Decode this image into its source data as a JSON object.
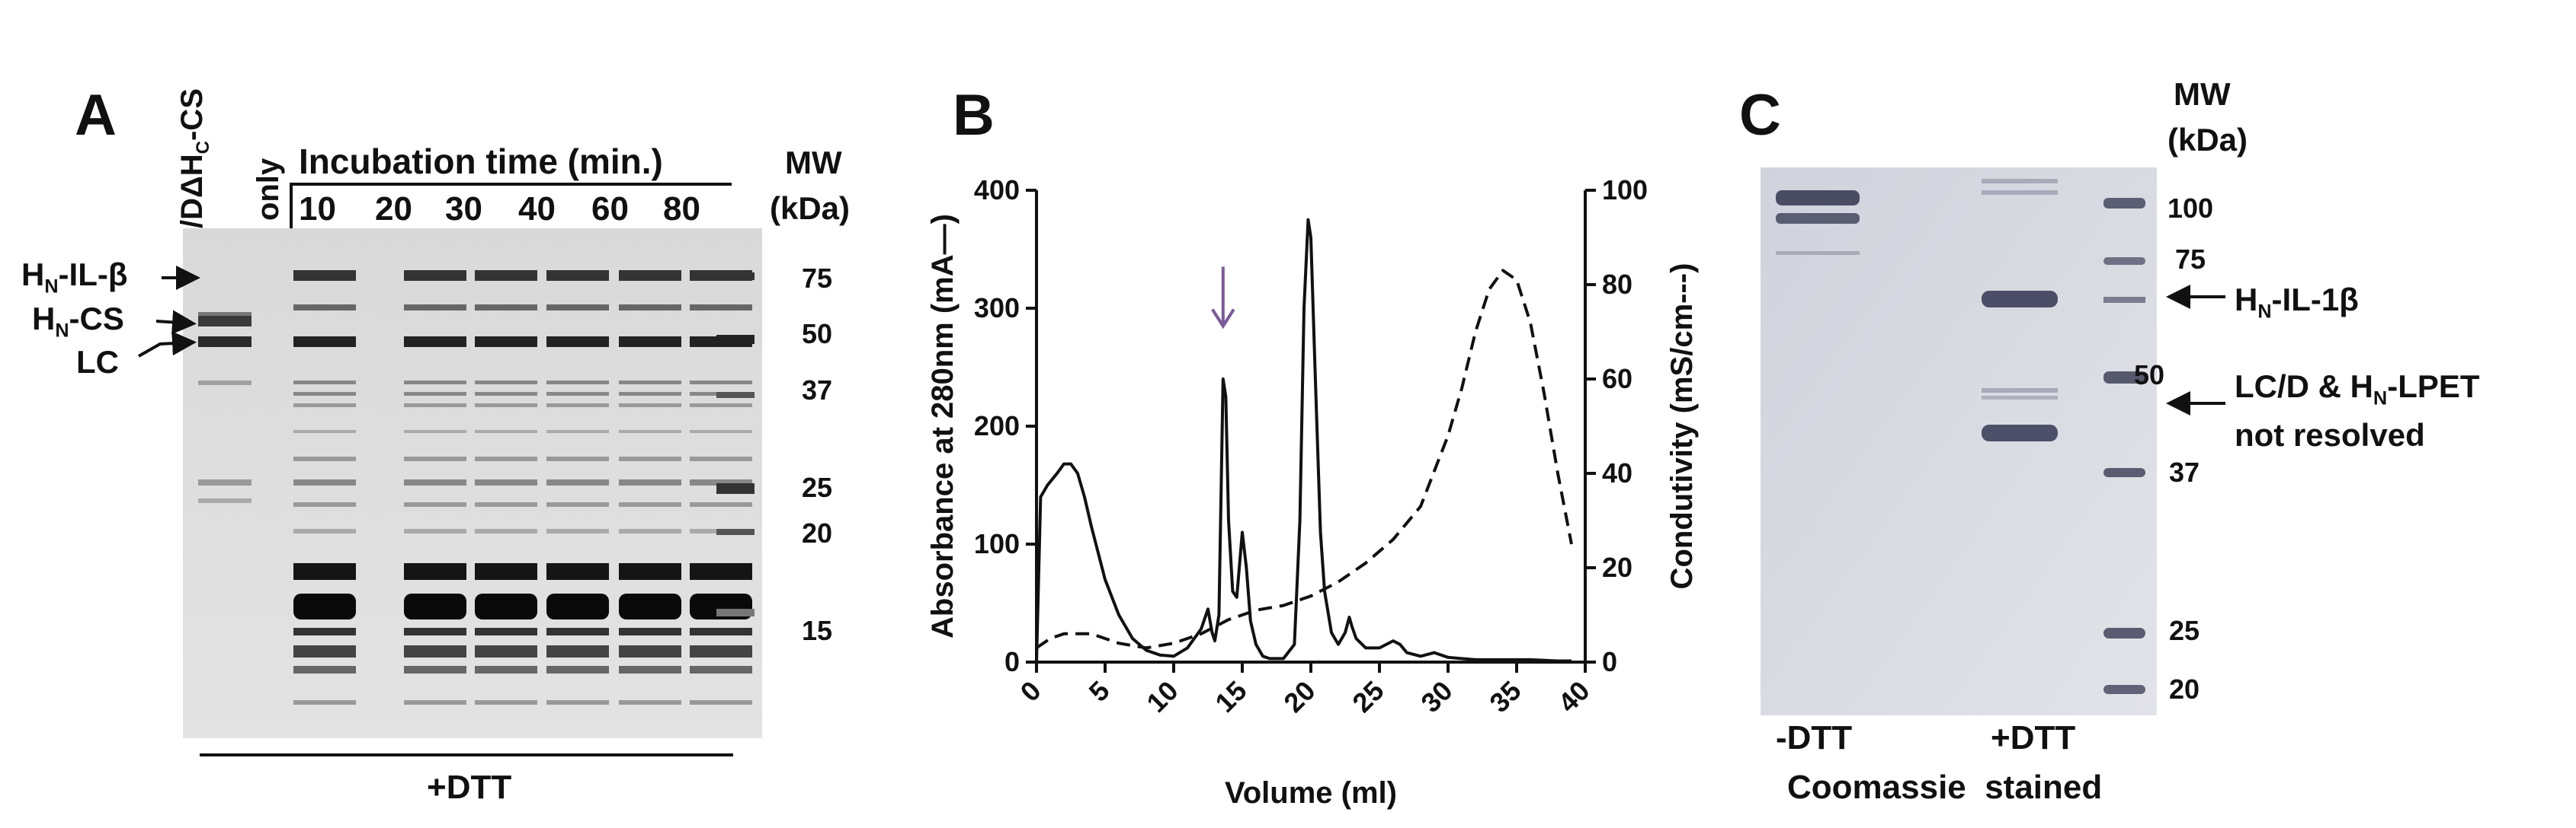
{
  "panel_a": {
    "letter": "A",
    "top_lane_label": "/DΔH",
    "top_lane_sub": "C",
    "top_lane_suffix": "-CS",
    "only_label": "only",
    "incubation_header": "Incubation time (min.)",
    "time_points": [
      "10",
      "20",
      "30",
      "40",
      "60",
      "80"
    ],
    "mw_header_1": "MW",
    "mw_header_2": "(kDa)",
    "mw_markers": [
      "75",
      "50",
      "37",
      "25",
      "20",
      "15"
    ],
    "band_labels": [
      {
        "main": "H",
        "sub": "N",
        "rest": "-IL-β"
      },
      {
        "main": "H",
        "sub": "N",
        "rest": "-CS"
      },
      {
        "main": "LC",
        "sub": "",
        "rest": ""
      }
    ],
    "bottom_label": "+DTT"
  },
  "panel_b": {
    "letter": "B",
    "arrow_color": "#7a5a9a",
    "chart_data": {
      "type": "line",
      "xlabel": "Volume (ml)",
      "ylabel_left": "Absorbance at 280nm (mA—)",
      "ylabel_right": "Condutivity (mS/cm---)",
      "xlim": [
        0,
        40
      ],
      "ylim_left": [
        0,
        400
      ],
      "ylim_right": [
        0,
        100
      ],
      "x_ticks": [
        "0",
        "5",
        "10",
        "15",
        "20",
        "25",
        "30",
        "35",
        "40"
      ],
      "y_ticks_left": [
        "0",
        "100",
        "200",
        "300",
        "400"
      ],
      "y_ticks_right": [
        "0",
        "20",
        "40",
        "60",
        "80",
        "100"
      ],
      "series": [
        {
          "name": "Absorbance (mA)",
          "style": "solid",
          "axis": "left",
          "x": [
            0,
            0.3,
            0.8,
            1.5,
            2.0,
            2.5,
            3.0,
            3.5,
            4.0,
            5.0,
            6.0,
            7.0,
            8.0,
            9.0,
            10.0,
            11.0,
            12.0,
            12.5,
            12.8,
            13.0,
            13.3,
            13.6,
            13.8,
            14.0,
            14.3,
            14.6,
            15.0,
            15.3,
            15.6,
            16.0,
            16.5,
            17.0,
            18.0,
            18.8,
            19.2,
            19.5,
            19.8,
            20.0,
            20.3,
            20.7,
            21.0,
            21.5,
            22.0,
            22.5,
            22.8,
            23.0,
            23.3,
            24.0,
            25.0,
            26.0,
            26.5,
            27.0,
            28.0,
            29.0,
            30.0,
            31.0,
            32.0,
            34.0,
            36.0,
            38.0,
            39.0
          ],
          "y": [
            0,
            140,
            150,
            160,
            168,
            168,
            160,
            140,
            115,
            70,
            40,
            20,
            10,
            6,
            5,
            12,
            28,
            45,
            25,
            18,
            40,
            240,
            225,
            120,
            60,
            55,
            110,
            80,
            35,
            15,
            5,
            3,
            3,
            15,
            120,
            300,
            375,
            360,
            250,
            110,
            60,
            25,
            15,
            25,
            38,
            30,
            20,
            12,
            12,
            18,
            15,
            8,
            5,
            8,
            4,
            3,
            2,
            2,
            2,
            1,
            1
          ]
        },
        {
          "name": "Conductivity (mS/cm)",
          "style": "dashed",
          "axis": "right",
          "x": [
            0,
            1,
            2,
            3,
            4,
            6,
            8,
            10,
            12,
            14,
            16,
            18,
            20,
            22,
            24,
            26,
            28,
            30,
            31,
            32,
            33,
            34,
            35,
            36,
            37,
            38,
            39
          ],
          "y": [
            3,
            5,
            6,
            6,
            6,
            4,
            3,
            4,
            6,
            9,
            11,
            12,
            14,
            17,
            21,
            26,
            33,
            48,
            58,
            70,
            79,
            83,
            81,
            72,
            57,
            40,
            25
          ]
        }
      ],
      "annotations": [
        {
          "type": "arrow",
          "x": 13.6,
          "y": 290
        }
      ]
    }
  },
  "panel_c": {
    "letter": "C",
    "mw_header_1": "MW",
    "mw_header_2": "(kDa)",
    "mw_markers": [
      "100",
      "75",
      "50",
      "37",
      "25",
      "20"
    ],
    "band_label_1_main": "H",
    "band_label_1_sub": "N",
    "band_label_1_rest": "-IL-1β",
    "band_label_2_line1_pre": "LC/D & H",
    "band_label_2_line1_sub": "N",
    "band_label_2_line1_rest": "-LPET",
    "band_label_2_line2": "not resolved",
    "lane_minus": "-DTT",
    "lane_plus": "+DTT",
    "caption": "Coomassie  stained"
  }
}
